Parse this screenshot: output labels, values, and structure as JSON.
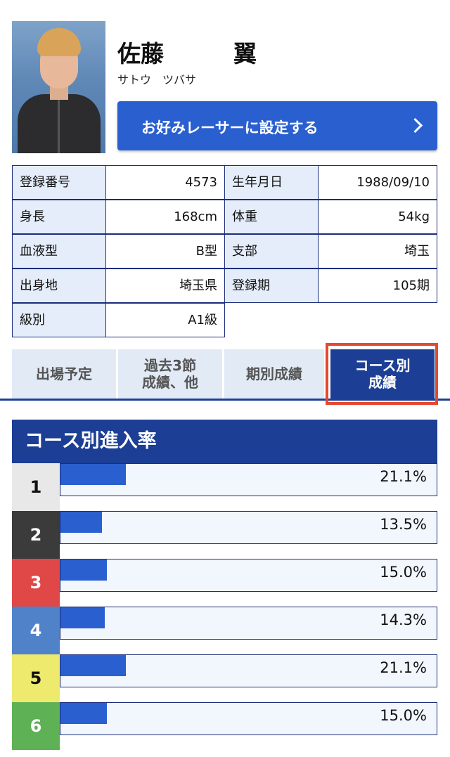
{
  "profile": {
    "name": "佐藤　　　翼",
    "kana": "サトウ　ツバサ",
    "favorite_button": "お好みレーサーに設定する"
  },
  "info": {
    "reg_no_label": "登録番号",
    "reg_no": "4573",
    "birth_label": "生年月日",
    "birth": "1988/09/10",
    "height_label": "身長",
    "height": "168cm",
    "weight_label": "体重",
    "weight": "54kg",
    "blood_label": "血液型",
    "blood": "B型",
    "branch_label": "支部",
    "branch": "埼玉",
    "hometown_label": "出身地",
    "hometown": "埼玉県",
    "term_label": "登録期",
    "term": "105期",
    "class_label": "級別",
    "class": "A1級"
  },
  "tabs": [
    {
      "label": "出場予定"
    },
    {
      "label": "過去3節\n成績、他"
    },
    {
      "label": "期別成績"
    },
    {
      "label": "コース別\n成績"
    }
  ],
  "course": {
    "title": "コース別進入率",
    "rows": [
      {
        "course": "1",
        "rate": 21.1,
        "label": "21.1%",
        "color": "#e8e8e8",
        "text_color": "#111111"
      },
      {
        "course": "2",
        "rate": 13.5,
        "label": "13.5%",
        "color": "#3b3b3b",
        "text_color": "#ffffff"
      },
      {
        "course": "3",
        "rate": 15.0,
        "label": "15.0%",
        "color": "#e04848",
        "text_color": "#ffffff"
      },
      {
        "course": "4",
        "rate": 14.3,
        "label": "14.3%",
        "color": "#4f82c8",
        "text_color": "#ffffff"
      },
      {
        "course": "5",
        "rate": 21.1,
        "label": "21.1%",
        "color": "#eeea6e",
        "text_color": "#111111"
      },
      {
        "course": "6",
        "rate": 15.0,
        "label": "15.0%",
        "color": "#5fb155",
        "text_color": "#ffffff"
      }
    ]
  },
  "colors": {
    "accent": "#2a5fd0",
    "navy": "#1c3f95",
    "highlight": "#e34a2f"
  }
}
